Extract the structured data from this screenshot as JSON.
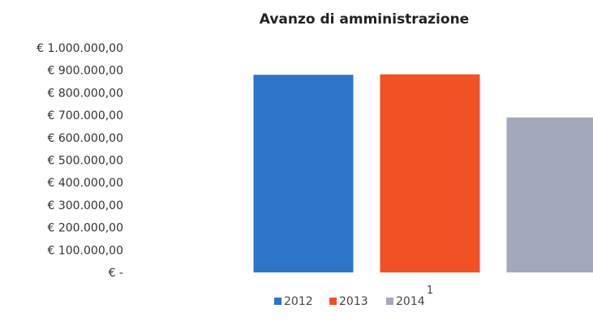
{
  "chart_data": {
    "type": "bar",
    "title": "Avanzo di amministrazione",
    "categories": [
      "1"
    ],
    "series": [
      {
        "name": "2012",
        "values": [
          880000
        ],
        "color": "#2e74c9"
      },
      {
        "name": "2013",
        "values": [
          882000
        ],
        "color": "#f25124"
      },
      {
        "name": "2014",
        "values": [
          690000
        ],
        "color": "#a4a8bb"
      }
    ],
    "ylim": [
      0,
      1000000
    ],
    "yticks": [
      {
        "value": 1000000,
        "label": "€ 1.000.000,00"
      },
      {
        "value": 900000,
        "label": "€ 900.000,00"
      },
      {
        "value": 800000,
        "label": "€ 800.000,00"
      },
      {
        "value": 700000,
        "label": "€ 700.000,00"
      },
      {
        "value": 600000,
        "label": "€ 600.000,00"
      },
      {
        "value": 500000,
        "label": "€ 500.000,00"
      },
      {
        "value": 400000,
        "label": "€ 400.000,00"
      },
      {
        "value": 300000,
        "label": "€ 300.000,00"
      },
      {
        "value": 200000,
        "label": "€ 200.000,00"
      },
      {
        "value": 100000,
        "label": "€ 100.000,00"
      },
      {
        "value": 0,
        "label": "€ -"
      }
    ],
    "grid": false,
    "legend_position": "bottom"
  }
}
